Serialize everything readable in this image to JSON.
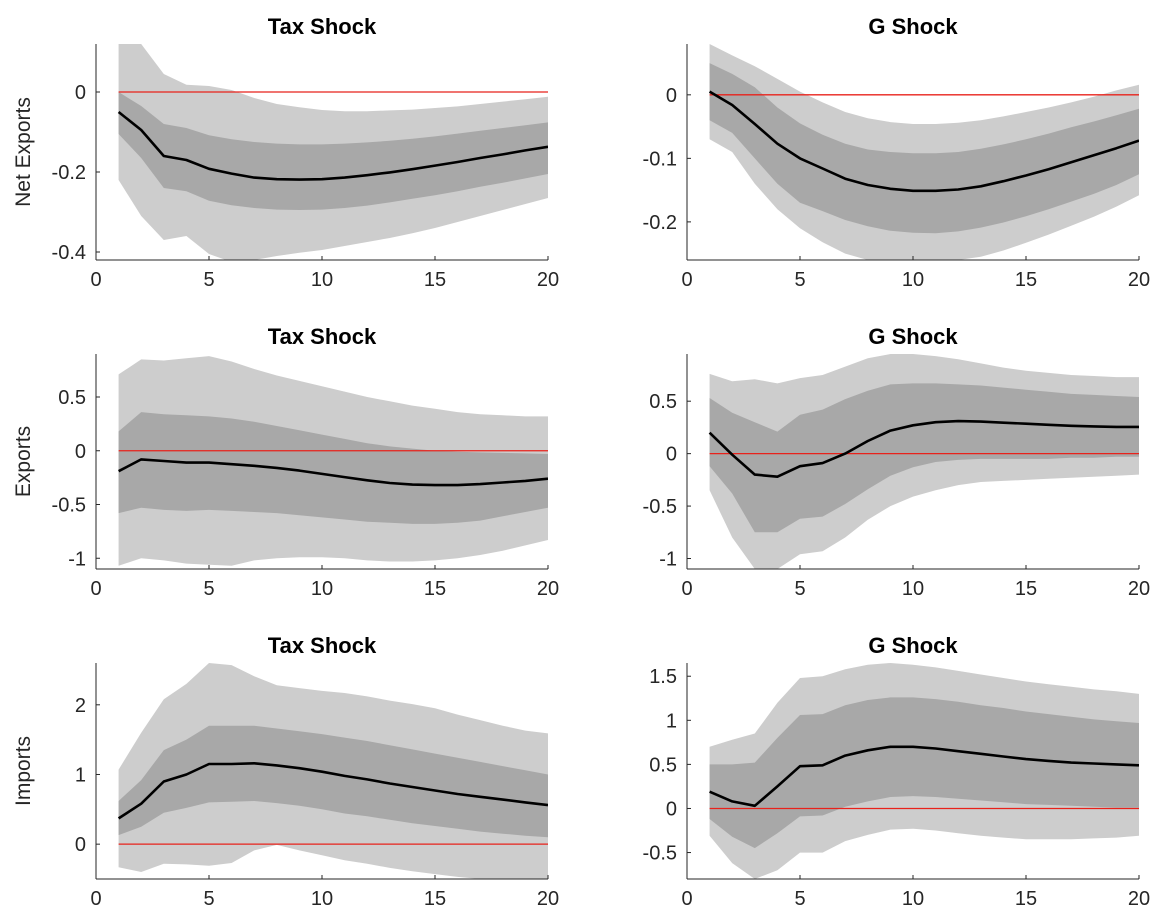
{
  "colors": {
    "outer_band": "#cdcdcd",
    "inner_band": "#a8a8a8",
    "median": "#000000",
    "zero_line": "#e8221b",
    "axis": "#262626"
  },
  "chart_data": [
    {
      "type": "area",
      "title": "Tax Shock",
      "xlabel": "",
      "ylabel": "Net Exports",
      "xlim": [
        0,
        20
      ],
      "ylim": [
        -0.42,
        0.12
      ],
      "xticks": [
        0,
        5,
        10,
        15,
        20
      ],
      "xtick_labels": [
        "0",
        "5",
        "10",
        "15",
        "20"
      ],
      "yticks": [
        -0.4,
        -0.2,
        0
      ],
      "ytick_labels": [
        "-0.4",
        "-0.2",
        "0"
      ],
      "zero_line": 0,
      "x": [
        1,
        2,
        3,
        4,
        5,
        6,
        7,
        8,
        9,
        10,
        11,
        12,
        13,
        14,
        15,
        16,
        17,
        18,
        19,
        20
      ],
      "series": [
        {
          "role": "median",
          "values": [
            -0.05,
            -0.095,
            -0.16,
            -0.17,
            -0.192,
            -0.204,
            -0.214,
            -0.218,
            -0.219,
            -0.218,
            -0.214,
            -0.208,
            -0.201,
            -0.193,
            -0.184,
            -0.175,
            -0.165,
            -0.156,
            -0.146,
            -0.137
          ]
        },
        {
          "role": "inner_upper",
          "values": [
            0.0,
            -0.035,
            -0.08,
            -0.09,
            -0.108,
            -0.118,
            -0.125,
            -0.129,
            -0.131,
            -0.131,
            -0.129,
            -0.126,
            -0.122,
            -0.117,
            -0.111,
            -0.104,
            -0.097,
            -0.09,
            -0.083,
            -0.076
          ]
        },
        {
          "role": "inner_lower",
          "values": [
            -0.105,
            -0.165,
            -0.24,
            -0.248,
            -0.272,
            -0.283,
            -0.29,
            -0.294,
            -0.295,
            -0.294,
            -0.29,
            -0.284,
            -0.276,
            -0.267,
            -0.258,
            -0.248,
            -0.237,
            -0.227,
            -0.216,
            -0.205
          ]
        },
        {
          "role": "outer_upper",
          "values": [
            0.12,
            0.12,
            0.045,
            0.018,
            0.015,
            0.005,
            -0.015,
            -0.03,
            -0.038,
            -0.045,
            -0.048,
            -0.048,
            -0.046,
            -0.044,
            -0.04,
            -0.036,
            -0.03,
            -0.024,
            -0.018,
            -0.012
          ]
        },
        {
          "role": "outer_lower",
          "values": [
            -0.22,
            -0.31,
            -0.37,
            -0.36,
            -0.405,
            -0.425,
            -0.42,
            -0.41,
            -0.402,
            -0.395,
            -0.385,
            -0.375,
            -0.365,
            -0.353,
            -0.34,
            -0.325,
            -0.31,
            -0.295,
            -0.28,
            -0.265
          ]
        }
      ]
    },
    {
      "type": "area",
      "title": "G Shock",
      "xlabel": "",
      "ylabel": "",
      "xlim": [
        0,
        20
      ],
      "ylim": [
        -0.26,
        0.08
      ],
      "xticks": [
        0,
        5,
        10,
        15,
        20
      ],
      "xtick_labels": [
        "0",
        "5",
        "10",
        "15",
        "20"
      ],
      "yticks": [
        -0.2,
        -0.1,
        0
      ],
      "ytick_labels": [
        "-0.2",
        "-0.1",
        "0"
      ],
      "zero_line": 0,
      "x": [
        1,
        2,
        3,
        4,
        5,
        6,
        7,
        8,
        9,
        10,
        11,
        12,
        13,
        14,
        15,
        16,
        17,
        18,
        19,
        20
      ],
      "series": [
        {
          "role": "median",
          "values": [
            0.005,
            -0.016,
            -0.046,
            -0.077,
            -0.1,
            -0.116,
            -0.132,
            -0.142,
            -0.148,
            -0.151,
            -0.151,
            -0.149,
            -0.144,
            -0.136,
            -0.127,
            -0.117,
            -0.106,
            -0.095,
            -0.084,
            -0.072
          ]
        },
        {
          "role": "inner_upper",
          "values": [
            0.05,
            0.033,
            0.012,
            -0.02,
            -0.045,
            -0.063,
            -0.077,
            -0.086,
            -0.09,
            -0.092,
            -0.092,
            -0.09,
            -0.085,
            -0.078,
            -0.07,
            -0.061,
            -0.051,
            -0.042,
            -0.032,
            -0.022
          ]
        },
        {
          "role": "inner_lower",
          "values": [
            -0.04,
            -0.06,
            -0.1,
            -0.14,
            -0.17,
            -0.183,
            -0.197,
            -0.207,
            -0.214,
            -0.217,
            -0.218,
            -0.215,
            -0.209,
            -0.201,
            -0.191,
            -0.18,
            -0.168,
            -0.156,
            -0.142,
            -0.125
          ]
        },
        {
          "role": "outer_upper",
          "values": [
            0.08,
            0.062,
            0.045,
            0.025,
            0.005,
            -0.012,
            -0.027,
            -0.037,
            -0.043,
            -0.046,
            -0.046,
            -0.044,
            -0.04,
            -0.034,
            -0.027,
            -0.02,
            -0.012,
            -0.003,
            0.007,
            0.016
          ]
        },
        {
          "role": "outer_lower",
          "values": [
            -0.07,
            -0.09,
            -0.14,
            -0.18,
            -0.21,
            -0.232,
            -0.25,
            -0.26,
            -0.26,
            -0.26,
            -0.26,
            -0.26,
            -0.255,
            -0.245,
            -0.233,
            -0.22,
            -0.206,
            -0.192,
            -0.176,
            -0.158
          ]
        }
      ]
    },
    {
      "type": "area",
      "title": "Tax Shock",
      "xlabel": "",
      "ylabel": "Exports",
      "xlim": [
        0,
        20
      ],
      "ylim": [
        -1.1,
        0.9
      ],
      "xticks": [
        0,
        5,
        10,
        15,
        20
      ],
      "xtick_labels": [
        "0",
        "5",
        "10",
        "15",
        "20"
      ],
      "yticks": [
        -1,
        -0.5,
        0,
        0.5
      ],
      "ytick_labels": [
        "-1",
        "-0.5",
        "0",
        "0.5"
      ],
      "zero_line": 0,
      "x": [
        1,
        2,
        3,
        4,
        5,
        6,
        7,
        8,
        9,
        10,
        11,
        12,
        13,
        14,
        15,
        16,
        17,
        18,
        19,
        20
      ],
      "series": [
        {
          "role": "median",
          "values": [
            -0.19,
            -0.08,
            -0.095,
            -0.11,
            -0.11,
            -0.125,
            -0.14,
            -0.16,
            -0.185,
            -0.215,
            -0.245,
            -0.275,
            -0.3,
            -0.315,
            -0.32,
            -0.32,
            -0.31,
            -0.295,
            -0.28,
            -0.26
          ]
        },
        {
          "role": "inner_upper",
          "values": [
            0.18,
            0.36,
            0.34,
            0.33,
            0.32,
            0.3,
            0.27,
            0.23,
            0.19,
            0.15,
            0.11,
            0.07,
            0.04,
            0.02,
            0.0,
            -0.01,
            -0.015,
            -0.02,
            -0.025,
            -0.03
          ]
        },
        {
          "role": "inner_lower",
          "values": [
            -0.58,
            -0.53,
            -0.55,
            -0.56,
            -0.55,
            -0.56,
            -0.57,
            -0.58,
            -0.6,
            -0.62,
            -0.64,
            -0.66,
            -0.67,
            -0.68,
            -0.68,
            -0.67,
            -0.65,
            -0.61,
            -0.57,
            -0.53
          ]
        },
        {
          "role": "outer_upper",
          "values": [
            0.71,
            0.85,
            0.84,
            0.86,
            0.88,
            0.83,
            0.76,
            0.7,
            0.65,
            0.6,
            0.55,
            0.5,
            0.46,
            0.42,
            0.39,
            0.36,
            0.34,
            0.33,
            0.32,
            0.32
          ]
        },
        {
          "role": "outer_lower",
          "values": [
            -1.07,
            -1.0,
            -1.02,
            -1.05,
            -1.06,
            -1.07,
            -1.02,
            -1.0,
            -0.99,
            -0.99,
            -1.0,
            -1.02,
            -1.03,
            -1.03,
            -1.02,
            -1.0,
            -0.97,
            -0.93,
            -0.88,
            -0.83
          ]
        }
      ]
    },
    {
      "type": "area",
      "title": "G Shock",
      "xlabel": "",
      "ylabel": "",
      "xlim": [
        0,
        20
      ],
      "ylim": [
        -1.1,
        0.95
      ],
      "xticks": [
        0,
        5,
        10,
        15,
        20
      ],
      "xtick_labels": [
        "0",
        "5",
        "10",
        "15",
        "20"
      ],
      "yticks": [
        -1,
        -0.5,
        0,
        0.5
      ],
      "ytick_labels": [
        "-1",
        "-0.5",
        "0",
        "0.5"
      ],
      "zero_line": 0,
      "x": [
        1,
        2,
        3,
        4,
        5,
        6,
        7,
        8,
        9,
        10,
        11,
        12,
        13,
        14,
        15,
        16,
        17,
        18,
        19,
        20
      ],
      "series": [
        {
          "role": "median",
          "values": [
            0.2,
            -0.01,
            -0.2,
            -0.22,
            -0.12,
            -0.09,
            0.0,
            0.12,
            0.22,
            0.27,
            0.3,
            0.31,
            0.305,
            0.295,
            0.285,
            0.275,
            0.265,
            0.26,
            0.255,
            0.255
          ]
        },
        {
          "role": "inner_upper",
          "values": [
            0.53,
            0.39,
            0.3,
            0.21,
            0.37,
            0.42,
            0.52,
            0.6,
            0.66,
            0.67,
            0.67,
            0.66,
            0.65,
            0.63,
            0.61,
            0.59,
            0.57,
            0.56,
            0.55,
            0.54
          ]
        },
        {
          "role": "inner_lower",
          "values": [
            -0.12,
            -0.38,
            -0.75,
            -0.75,
            -0.62,
            -0.6,
            -0.48,
            -0.34,
            -0.21,
            -0.13,
            -0.08,
            -0.06,
            -0.05,
            -0.05,
            -0.05,
            -0.05,
            -0.04,
            -0.04,
            -0.03,
            -0.03
          ]
        },
        {
          "role": "outer_upper",
          "values": [
            0.76,
            0.69,
            0.71,
            0.67,
            0.72,
            0.75,
            0.83,
            0.91,
            0.95,
            0.95,
            0.93,
            0.9,
            0.86,
            0.82,
            0.79,
            0.77,
            0.75,
            0.74,
            0.73,
            0.73
          ]
        },
        {
          "role": "outer_lower",
          "values": [
            -0.35,
            -0.8,
            -1.1,
            -1.1,
            -0.96,
            -0.93,
            -0.8,
            -0.63,
            -0.5,
            -0.41,
            -0.35,
            -0.3,
            -0.27,
            -0.26,
            -0.25,
            -0.24,
            -0.23,
            -0.22,
            -0.21,
            -0.2
          ]
        }
      ]
    },
    {
      "type": "area",
      "title": "Tax Shock",
      "xlabel": "",
      "ylabel": "Imports",
      "xlim": [
        0,
        20
      ],
      "ylim": [
        -0.5,
        2.6
      ],
      "xticks": [
        0,
        5,
        10,
        15,
        20
      ],
      "xtick_labels": [
        "0",
        "5",
        "10",
        "15",
        "20"
      ],
      "yticks": [
        0,
        1,
        2
      ],
      "ytick_labels": [
        "0",
        "1",
        "2"
      ],
      "zero_line": 0,
      "x": [
        1,
        2,
        3,
        4,
        5,
        6,
        7,
        8,
        9,
        10,
        11,
        12,
        13,
        14,
        15,
        16,
        17,
        18,
        19,
        20
      ],
      "series": [
        {
          "role": "median",
          "values": [
            0.37,
            0.58,
            0.9,
            1.0,
            1.15,
            1.15,
            1.16,
            1.13,
            1.09,
            1.04,
            0.98,
            0.93,
            0.87,
            0.82,
            0.77,
            0.72,
            0.68,
            0.64,
            0.6,
            0.56
          ]
        },
        {
          "role": "inner_upper",
          "values": [
            0.62,
            0.92,
            1.35,
            1.5,
            1.7,
            1.7,
            1.7,
            1.66,
            1.62,
            1.58,
            1.53,
            1.48,
            1.42,
            1.36,
            1.3,
            1.24,
            1.18,
            1.12,
            1.06,
            1.0
          ]
        },
        {
          "role": "inner_lower",
          "values": [
            0.13,
            0.25,
            0.45,
            0.52,
            0.6,
            0.61,
            0.62,
            0.59,
            0.55,
            0.5,
            0.44,
            0.4,
            0.35,
            0.3,
            0.26,
            0.22,
            0.18,
            0.15,
            0.12,
            0.1
          ]
        },
        {
          "role": "outer_upper",
          "values": [
            1.07,
            1.6,
            2.08,
            2.3,
            2.6,
            2.57,
            2.41,
            2.28,
            2.24,
            2.2,
            2.17,
            2.12,
            2.06,
            2.01,
            1.95,
            1.86,
            1.78,
            1.7,
            1.63,
            1.59
          ]
        },
        {
          "role": "outer_lower",
          "values": [
            -0.33,
            -0.4,
            -0.28,
            -0.29,
            -0.31,
            -0.27,
            -0.09,
            -0.01,
            -0.09,
            -0.16,
            -0.23,
            -0.28,
            -0.34,
            -0.39,
            -0.43,
            -0.47,
            -0.5,
            -0.5,
            -0.5,
            -0.5
          ]
        }
      ]
    },
    {
      "type": "area",
      "title": "G Shock",
      "xlabel": "",
      "ylabel": "",
      "xlim": [
        0,
        20
      ],
      "ylim": [
        -0.8,
        1.65
      ],
      "xticks": [
        0,
        5,
        10,
        15,
        20
      ],
      "xtick_labels": [
        "0",
        "5",
        "10",
        "15",
        "20"
      ],
      "yticks": [
        -0.5,
        0,
        0.5,
        1,
        1.5
      ],
      "ytick_labels": [
        "-0.5",
        "0",
        "0.5",
        "1",
        "1.5"
      ],
      "zero_line": 0,
      "x": [
        1,
        2,
        3,
        4,
        5,
        6,
        7,
        8,
        9,
        10,
        11,
        12,
        13,
        14,
        15,
        16,
        17,
        18,
        19,
        20
      ],
      "series": [
        {
          "role": "median",
          "values": [
            0.19,
            0.08,
            0.03,
            0.25,
            0.48,
            0.49,
            0.6,
            0.66,
            0.7,
            0.7,
            0.68,
            0.65,
            0.62,
            0.59,
            0.56,
            0.54,
            0.52,
            0.51,
            0.5,
            0.49
          ]
        },
        {
          "role": "inner_upper",
          "values": [
            0.5,
            0.5,
            0.52,
            0.8,
            1.06,
            1.07,
            1.17,
            1.23,
            1.26,
            1.26,
            1.24,
            1.21,
            1.17,
            1.14,
            1.1,
            1.07,
            1.04,
            1.01,
            0.99,
            0.97
          ]
        },
        {
          "role": "inner_lower",
          "values": [
            -0.12,
            -0.32,
            -0.45,
            -0.28,
            -0.09,
            -0.08,
            0.02,
            0.08,
            0.13,
            0.14,
            0.13,
            0.11,
            0.09,
            0.07,
            0.05,
            0.04,
            0.03,
            0.02,
            0.01,
            0.01
          ]
        },
        {
          "role": "outer_upper",
          "values": [
            0.7,
            0.78,
            0.85,
            1.2,
            1.48,
            1.5,
            1.58,
            1.63,
            1.65,
            1.63,
            1.6,
            1.56,
            1.52,
            1.48,
            1.44,
            1.41,
            1.38,
            1.35,
            1.33,
            1.3
          ]
        },
        {
          "role": "outer_lower",
          "values": [
            -0.31,
            -0.62,
            -0.8,
            -0.7,
            -0.5,
            -0.5,
            -0.37,
            -0.3,
            -0.24,
            -0.23,
            -0.25,
            -0.28,
            -0.31,
            -0.33,
            -0.35,
            -0.35,
            -0.35,
            -0.34,
            -0.33,
            -0.31
          ]
        }
      ]
    }
  ]
}
